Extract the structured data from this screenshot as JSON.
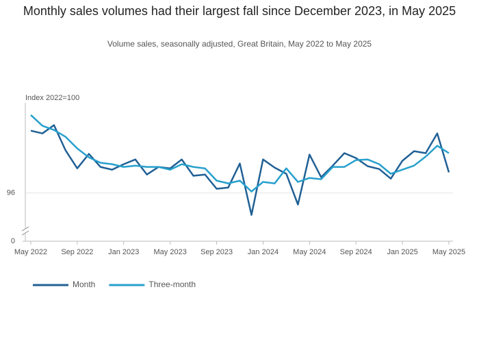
{
  "chart_data": {
    "type": "line",
    "title": "Monthly sales volumes had their largest fall since December 2023, in May 2025",
    "subtitle": "Volume sales, seasonally adjusted, Great Britain, May 2022 to May 2025",
    "y_label": "Index 2022=100",
    "categories": [
      "May 2022",
      null,
      null,
      null,
      "Sep 2022",
      null,
      null,
      null,
      "Jan 2023",
      null,
      null,
      null,
      "May 2023",
      null,
      null,
      null,
      "Sep 2023",
      null,
      null,
      null,
      "Jan 2024",
      null,
      null,
      null,
      "May 2024",
      null,
      null,
      null,
      "Sep 2024",
      null,
      null,
      null,
      "Jan 2025",
      null,
      null,
      null,
      "May 2025"
    ],
    "series": [
      {
        "name": "Month",
        "color": "#206095",
        "values": [
          100.35,
          100.16,
          100.74,
          98.97,
          97.72,
          98.73,
          97.82,
          97.63,
          98.01,
          98.34,
          97.29,
          97.82,
          97.72,
          98.34,
          97.2,
          97.29,
          96.29,
          96.38,
          98.06,
          94.47,
          98.34,
          97.77,
          97.34,
          95.19,
          98.68,
          97.1,
          97.91,
          98.78,
          98.44,
          97.87,
          97.67,
          97.0,
          98.25,
          98.92,
          98.78,
          100.16,
          97.44
        ]
      },
      {
        "name": "Three-month",
        "color": "#27a0cc",
        "values": [
          101.45,
          100.69,
          100.4,
          99.92,
          99.11,
          98.49,
          98.11,
          98.01,
          97.82,
          97.91,
          97.82,
          97.82,
          97.63,
          98.01,
          97.82,
          97.72,
          96.86,
          96.67,
          96.86,
          96.1,
          96.77,
          96.67,
          97.72,
          96.77,
          97.05,
          96.96,
          97.82,
          97.82,
          98.3,
          98.34,
          98.01,
          97.34,
          97.63,
          97.91,
          98.54,
          99.3,
          98.78
        ]
      }
    ],
    "ylim": [
      93.3,
      102.3
    ],
    "yticks": [
      0,
      96
    ],
    "y_break": true,
    "grid": true,
    "legend": "bottom-left"
  }
}
